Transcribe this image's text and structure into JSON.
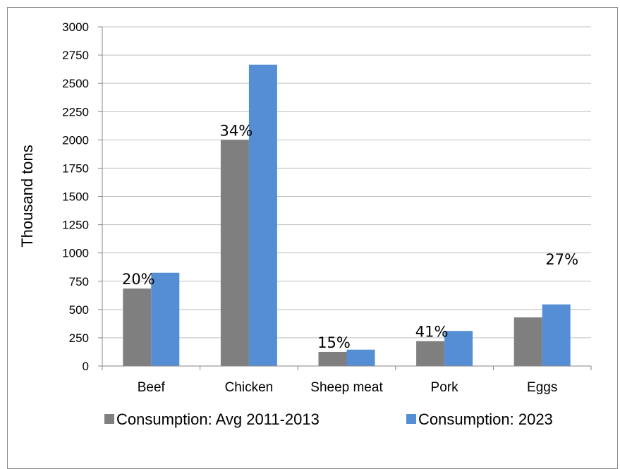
{
  "chart_data": {
    "type": "bar",
    "categories": [
      "Beef",
      "Chicken",
      "Sheep meat",
      "Pork",
      "Eggs"
    ],
    "series": [
      {
        "name": "Consumption: Avg 2011-2013",
        "values": [
          685,
          2000,
          125,
          220,
          430
        ],
        "color": "#7f7f7f"
      },
      {
        "name": "Consumption: 2023",
        "values": [
          825,
          2665,
          145,
          310,
          545
        ],
        "color": "#558ed5"
      }
    ],
    "annotations": [
      "20%",
      "34%",
      "15%",
      "41%",
      "27%"
    ],
    "xlabel": "",
    "ylabel": "Thousand tons",
    "ylim": [
      0,
      3000
    ],
    "yticks": [
      "0",
      "250",
      "500",
      "750",
      "1000",
      "1250",
      "1500",
      "1750",
      "2000",
      "2250",
      "2500",
      "2750",
      "3000"
    ],
    "grid": true,
    "legend_position": "bottom"
  }
}
